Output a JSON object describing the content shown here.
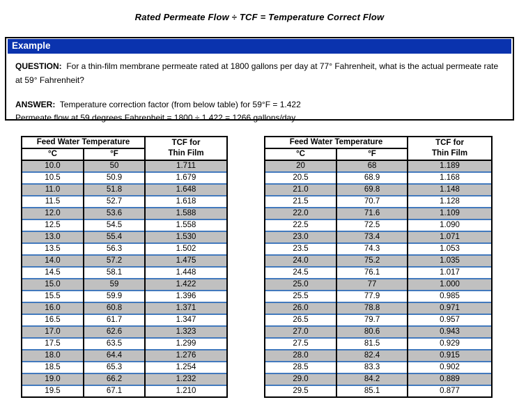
{
  "title": "Rated Permeate Flow ÷ TCF = Temperature Correct Flow",
  "example": {
    "header": "Example",
    "question_label": "QUESTION:",
    "question": "For a thin-film membrane permeate rated at 1800 gallons per day at 77° Fahrenheit, what is the actual permeate rate at 59° Fahrenheit?",
    "answer_label": "ANSWER:",
    "answer_line1": "Temperature correction factor (from below table) for 59°F = 1.422",
    "answer_line2": "Permeate flow at 59 degrees Fahrenheit = 1800 ÷ 1.422 = 1266 gallons/day"
  },
  "table_header": {
    "group": "Feed Water Temperature",
    "celsius": "°C",
    "fahrenheit": "°F",
    "tcf_line1": "TCF for",
    "tcf_line2": "Thin Film"
  },
  "tables": [
    {
      "rows": [
        [
          "10.0",
          "50",
          "1.711"
        ],
        [
          "10.5",
          "50.9",
          "1.679"
        ],
        [
          "11.0",
          "51.8",
          "1.648"
        ],
        [
          "11.5",
          "52.7",
          "1.618"
        ],
        [
          "12.0",
          "53.6",
          "1.588"
        ],
        [
          "12.5",
          "54.5",
          "1.558"
        ],
        [
          "13.0",
          "55.4",
          "1.530"
        ],
        [
          "13.5",
          "56.3",
          "1.502"
        ],
        [
          "14.0",
          "57.2",
          "1.475"
        ],
        [
          "14.5",
          "58.1",
          "1.448"
        ],
        [
          "15.0",
          "59",
          "1.422"
        ],
        [
          "15.5",
          "59.9",
          "1.396"
        ],
        [
          "16.0",
          "60.8",
          "1.371"
        ],
        [
          "16.5",
          "61.7",
          "1.347"
        ],
        [
          "17.0",
          "62.6",
          "1.323"
        ],
        [
          "17.5",
          "63.5",
          "1.299"
        ],
        [
          "18.0",
          "64.4",
          "1.276"
        ],
        [
          "18.5",
          "65.3",
          "1.254"
        ],
        [
          "19.0",
          "66.2",
          "1.232"
        ],
        [
          "19.5",
          "67.1",
          "1.210"
        ]
      ]
    },
    {
      "rows": [
        [
          "20",
          "68",
          "1.189"
        ],
        [
          "20.5",
          "68.9",
          "1.168"
        ],
        [
          "21.0",
          "69.8",
          "1.148"
        ],
        [
          "21.5",
          "70.7",
          "1.128"
        ],
        [
          "22.0",
          "71.6",
          "1.109"
        ],
        [
          "22.5",
          "72.5",
          "1.090"
        ],
        [
          "23.0",
          "73.4",
          "1.071"
        ],
        [
          "23.5",
          "74.3",
          "1.053"
        ],
        [
          "24.0",
          "75.2",
          "1.035"
        ],
        [
          "24.5",
          "76.1",
          "1.017"
        ],
        [
          "25.0",
          "77",
          "1.000"
        ],
        [
          "25.5",
          "77.9",
          "0.985"
        ],
        [
          "26.0",
          "78.8",
          "0.971"
        ],
        [
          "26.5",
          "79.7",
          "0.957"
        ],
        [
          "27.0",
          "80.6",
          "0.943"
        ],
        [
          "27.5",
          "81.5",
          "0.929"
        ],
        [
          "28.0",
          "82.4",
          "0.915"
        ],
        [
          "28.5",
          "83.3",
          "0.902"
        ],
        [
          "29.0",
          "84.2",
          "0.889"
        ],
        [
          "29.5",
          "85.1",
          "0.877"
        ]
      ]
    }
  ],
  "colors": {
    "example_header_blue": "#0a33ae",
    "row_separator_blue": "#4279bd",
    "shaded_row_gray": "#c0c0c0",
    "border_black": "#000000"
  }
}
